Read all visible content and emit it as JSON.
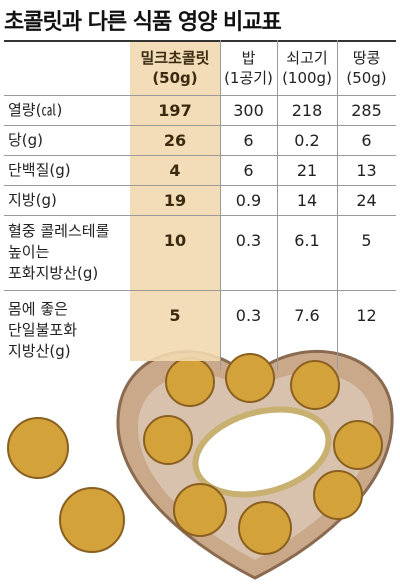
{
  "title": "초콜릿과 다른 식품 영양 비교표",
  "table": {
    "columns": [
      {
        "name": "밀크초콜릿",
        "unit": "(50g)"
      },
      {
        "name": "밥",
        "unit": "(1공기)"
      },
      {
        "name": "쇠고기",
        "unit": "(100g)"
      },
      {
        "name": "땅콩",
        "unit": "(50g)"
      }
    ],
    "rows": [
      {
        "label": [
          "열량(㎈)"
        ],
        "values": [
          "197",
          "300",
          "218",
          "285"
        ]
      },
      {
        "label": [
          "당(g)"
        ],
        "values": [
          "26",
          "6",
          "0.2",
          "6"
        ]
      },
      {
        "label": [
          "단백질(g)"
        ],
        "values": [
          "4",
          "6",
          "21",
          "13"
        ]
      },
      {
        "label": [
          "지방(g)"
        ],
        "values": [
          "19",
          "0.9",
          "14",
          "24"
        ]
      },
      {
        "label": [
          "혈중 콜레스테롤",
          "높이는",
          "포화지방산(g)"
        ],
        "values": [
          "10",
          "0.3",
          "6.1",
          "5"
        ]
      },
      {
        "label": [
          "몸에 좋은",
          "단일불포화",
          "지방산(g)"
        ],
        "values": [
          "5",
          "0.3",
          "7.6",
          "12"
        ]
      }
    ]
  }
}
